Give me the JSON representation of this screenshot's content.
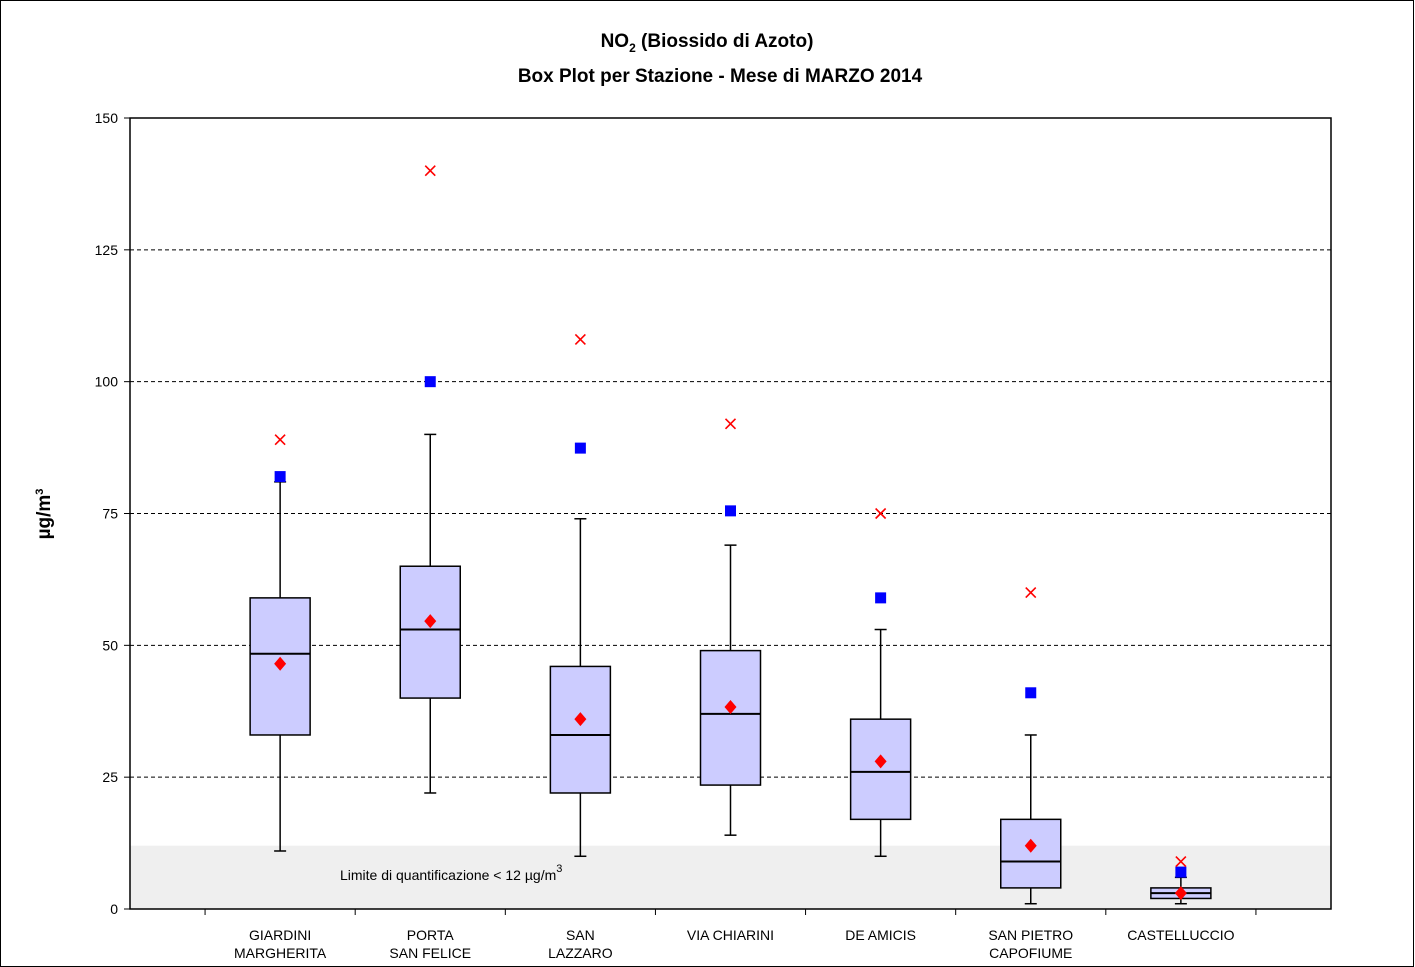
{
  "chart_data": {
    "type": "box",
    "title_parts": [
      "NO",
      "2",
      " (Biossido di Azoto)"
    ],
    "subtitle": "Box Plot per Stazione - Mese di MARZO 2014",
    "ylabel_parts": [
      "µg/m",
      "3"
    ],
    "categories": [
      [
        "GIARDINI",
        "MARGHERITA"
      ],
      [
        "PORTA",
        "SAN FELICE"
      ],
      [
        "SAN",
        "LAZZARO"
      ],
      [
        "VIA CHIARINI"
      ],
      [
        "DE AMICIS"
      ],
      [
        "SAN PIETRO",
        "CAPOFIUME"
      ],
      [
        "CASTELLUCCIO"
      ]
    ],
    "whisker_low": [
      11,
      22,
      10,
      14,
      10,
      1,
      1
    ],
    "q1": [
      33,
      40,
      22,
      23.5,
      17,
      4,
      2
    ],
    "median": [
      48.4,
      53,
      33,
      37,
      26,
      9,
      3
    ],
    "q3": [
      59,
      65,
      46,
      49,
      36,
      17,
      4
    ],
    "whisker_high": [
      81,
      90,
      74,
      69,
      53,
      33,
      6
    ],
    "mean": [
      46.5,
      54.6,
      36,
      38.3,
      28,
      12,
      3
    ],
    "blue_points": [
      82,
      100,
      87.4,
      75.5,
      59,
      41,
      7
    ],
    "max": [
      89,
      140,
      108,
      92,
      75,
      60,
      9
    ],
    "box_color": "#ccccff",
    "mean_color": "#ff0000",
    "blue_color": "#0000ff",
    "max_color": "#ff0000",
    "quantification_limit": 12,
    "band_color": "#efefef",
    "band_label_parts": [
      "Limite di quantificazione < 12 µg/m",
      "3"
    ],
    "ylim": [
      0,
      150
    ],
    "yticks": [
      0,
      25,
      50,
      75,
      100,
      125,
      150
    ],
    "grid": true
  }
}
